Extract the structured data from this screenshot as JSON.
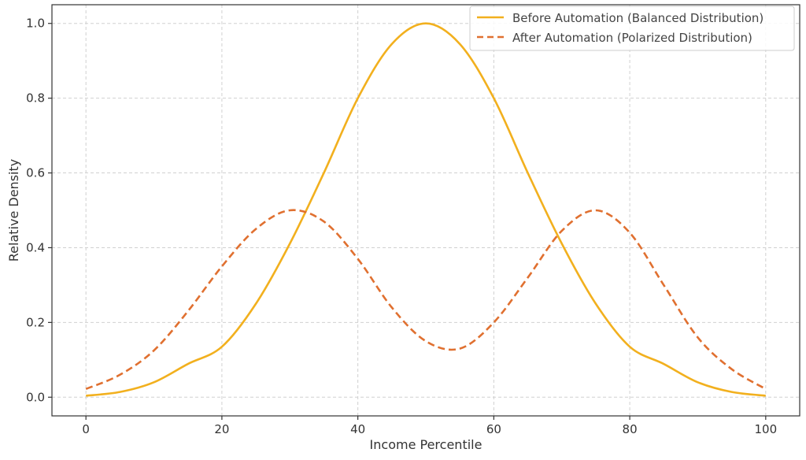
{
  "chart_data": {
    "type": "line",
    "xlabel": "Income Percentile",
    "ylabel": "Relative Density",
    "xlim": [
      -5,
      105
    ],
    "ylim": [
      -0.05,
      1.05
    ],
    "x_ticks": [
      0,
      20,
      40,
      60,
      80,
      100
    ],
    "y_ticks": [
      0.0,
      0.2,
      0.4,
      0.6,
      0.8,
      1.0
    ],
    "x_tick_labels": [
      "0",
      "20",
      "40",
      "60",
      "80",
      "100"
    ],
    "y_tick_labels": [
      "0.0",
      "0.2",
      "0.4",
      "0.6",
      "0.8",
      "1.0"
    ],
    "grid": true,
    "legend_position": "top-right",
    "x": [
      0,
      5,
      10,
      15,
      20,
      25,
      30,
      35,
      40,
      45,
      50,
      55,
      60,
      65,
      70,
      75,
      80,
      85,
      90,
      95,
      100
    ],
    "series": [
      {
        "name": "Before Automation (Balanced Distribution)",
        "color": "#f2b01e",
        "style": "solid",
        "values": [
          0.004,
          0.014,
          0.04,
          0.089,
          0.135,
          0.25,
          0.411,
          0.6,
          0.8,
          0.945,
          1.0,
          0.945,
          0.8,
          0.6,
          0.411,
          0.25,
          0.135,
          0.089,
          0.04,
          0.014,
          0.004
        ]
      },
      {
        "name": "After Automation (Polarized Distribution)",
        "color": "#e07030",
        "style": "dashed",
        "values": [
          0.022,
          0.06,
          0.125,
          0.23,
          0.35,
          0.45,
          0.5,
          0.47,
          0.37,
          0.24,
          0.15,
          0.13,
          0.2,
          0.32,
          0.445,
          0.5,
          0.44,
          0.3,
          0.16,
          0.075,
          0.022
        ]
      }
    ]
  }
}
